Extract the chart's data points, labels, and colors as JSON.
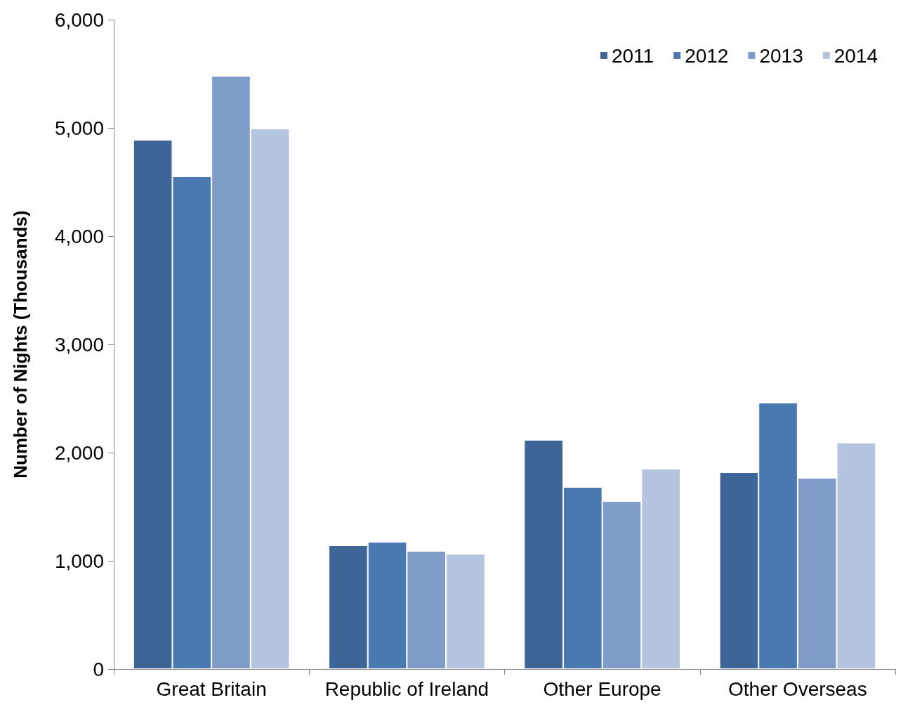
{
  "chart_data": {
    "type": "bar",
    "ylabel": "Number of Nights (Thousands)",
    "categories": [
      "Great Britain",
      "Republic of Ireland",
      "Other Europe",
      "Other Overseas"
    ],
    "series": [
      {
        "name": "2011",
        "color": "#3e6597",
        "values": [
          4890,
          1143,
          2117,
          1818
        ]
      },
      {
        "name": "2012",
        "color": "#4a78b0",
        "values": [
          4552,
          1175,
          1682,
          2461
        ]
      },
      {
        "name": "2013",
        "color": "#7f9cc8",
        "values": [
          5481,
          1091,
          1552,
          1766
        ]
      },
      {
        "name": "2014",
        "color": "#b4c3de",
        "values": [
          4994,
          1065,
          1851,
          2091
        ]
      }
    ],
    "ylim": [
      0,
      6000
    ],
    "yticks": [
      0,
      {
        "value": 1000,
        "label": "1,000"
      },
      {
        "value": 2000,
        "label": "2,000"
      },
      {
        "value": 3000,
        "label": "3,000"
      },
      {
        "value": 4000,
        "label": "4,000"
      },
      {
        "value": 5000,
        "label": "5,000"
      },
      {
        "value": 6000,
        "label": "6,000"
      }
    ],
    "grid": false,
    "legend": "top right"
  }
}
